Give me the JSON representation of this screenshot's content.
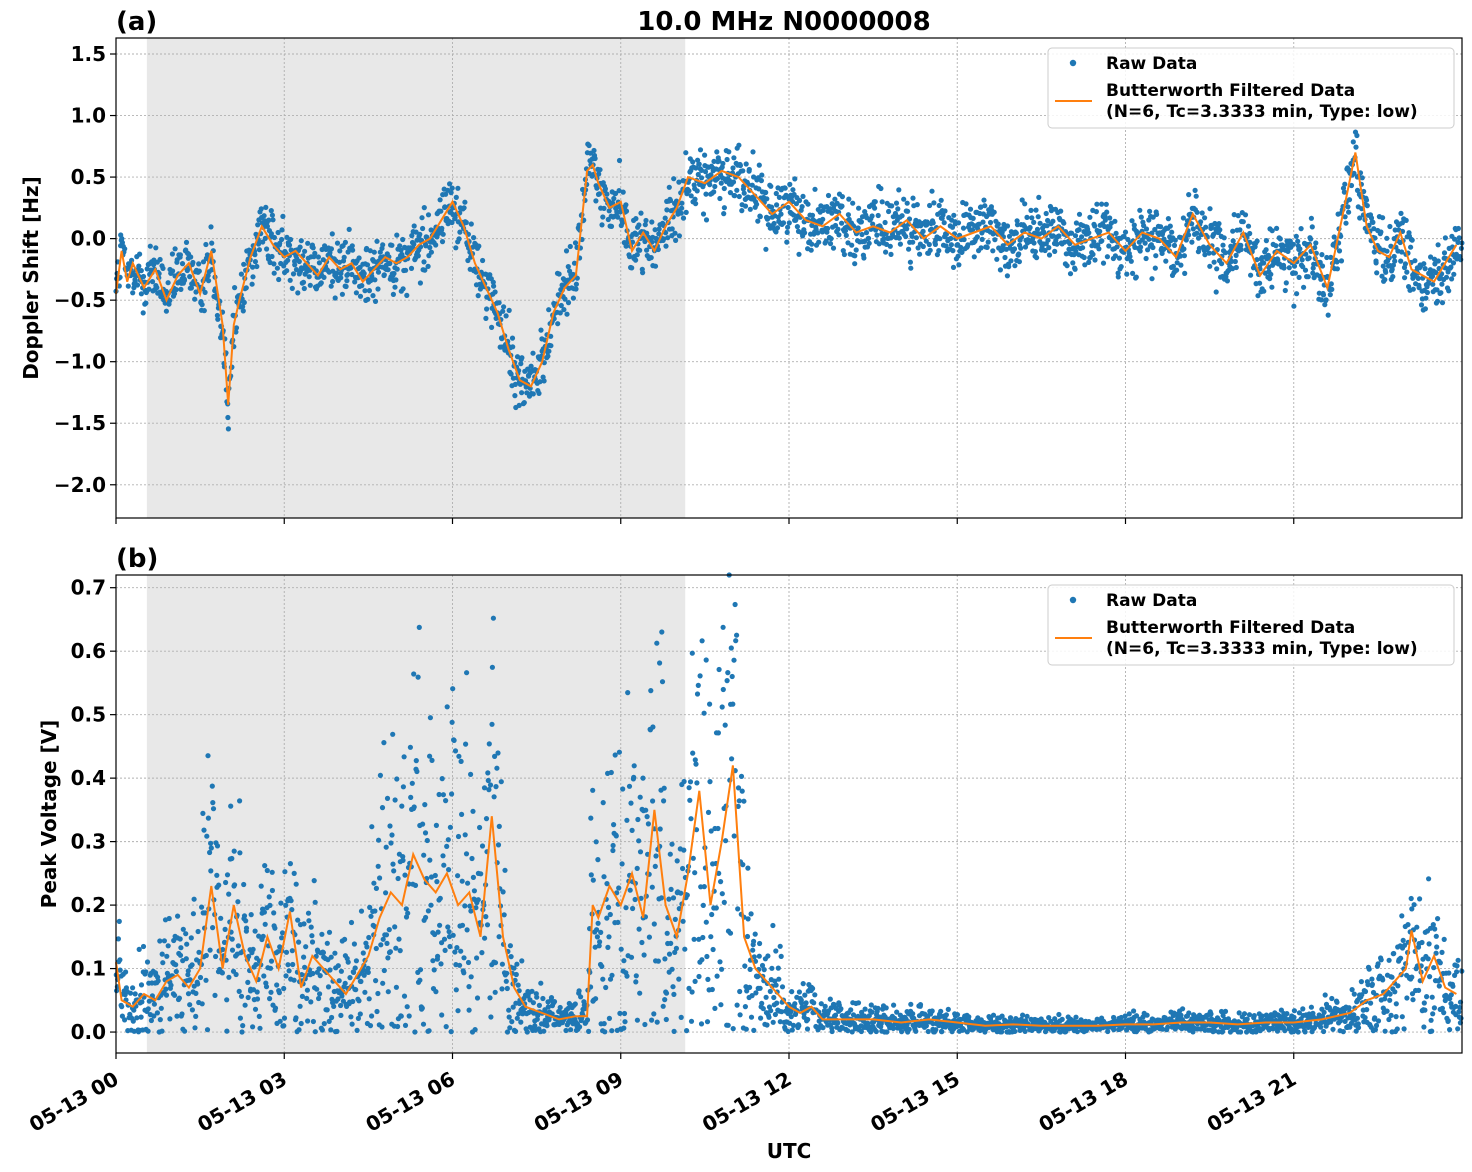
{
  "figure": {
    "title": "10.0 MHz N0000008",
    "xlabel": "UTC",
    "x_ticks": [
      "05-13 00",
      "05-13 03",
      "05-13 06",
      "05-13 09",
      "05-13 12",
      "05-13 15",
      "05-13 18",
      "05-13 21"
    ]
  },
  "colors": {
    "raw": "#1f77b4",
    "filtered": "#ff7f0e",
    "shade": "#e8e8e8",
    "grid": "#b0b0b0"
  },
  "chart_data": [
    {
      "type": "scatter",
      "panel_label": "(a)",
      "title": "10.0 MHz N0000008",
      "ylabel": "Doppler Shift [Hz]",
      "xlabel": "",
      "x_unit": "hours after 05-13 00 UTC",
      "xlim": [
        0,
        24
      ],
      "ylim": [
        -2.27,
        1.63
      ],
      "y_ticks": [
        1.5,
        1.0,
        0.5,
        0.0,
        -0.5,
        -1.0,
        -1.5,
        -2.0
      ],
      "y_tick_labels": [
        "1.5",
        "1.0",
        "0.5",
        "0.0",
        "−0.5",
        "−1.0",
        "−1.5",
        "−2.0"
      ],
      "shaded_interval": [
        0.55,
        10.15
      ],
      "grid": true,
      "legend_position": "top-right",
      "legend": [
        "Raw Data",
        "Butterworth Filtered Data",
        "(N=6, Tc=3.3333 min, Type: low)"
      ],
      "filtered": {
        "name": "Butterworth Filtered Data",
        "x": [
          0.0,
          0.1,
          0.2,
          0.3,
          0.5,
          0.7,
          0.9,
          1.1,
          1.3,
          1.5,
          1.7,
          1.9,
          2.0,
          2.1,
          2.2,
          2.4,
          2.6,
          2.8,
          3.0,
          3.2,
          3.4,
          3.6,
          3.8,
          4.0,
          4.2,
          4.4,
          4.6,
          4.8,
          5.0,
          5.2,
          5.4,
          5.6,
          5.8,
          6.0,
          6.2,
          6.4,
          6.6,
          6.8,
          7.0,
          7.2,
          7.4,
          7.6,
          7.8,
          8.0,
          8.2,
          8.4,
          8.5,
          8.6,
          8.8,
          9.0,
          9.2,
          9.4,
          9.6,
          9.8,
          10.0,
          10.2,
          10.5,
          10.8,
          11.1,
          11.4,
          11.7,
          12.0,
          12.3,
          12.6,
          12.9,
          13.2,
          13.5,
          13.8,
          14.1,
          14.4,
          14.7,
          15.0,
          15.3,
          15.6,
          15.9,
          16.2,
          16.5,
          16.8,
          17.1,
          17.4,
          17.7,
          18.0,
          18.3,
          18.6,
          18.9,
          19.2,
          19.5,
          19.8,
          20.1,
          20.4,
          20.7,
          21.0,
          21.3,
          21.6,
          21.9,
          22.1,
          22.2,
          22.3,
          22.5,
          22.7,
          22.9,
          23.1,
          23.3,
          23.5,
          23.7,
          23.9
        ],
        "y": [
          -0.45,
          -0.1,
          -0.35,
          -0.2,
          -0.4,
          -0.25,
          -0.5,
          -0.3,
          -0.2,
          -0.45,
          -0.1,
          -0.7,
          -1.35,
          -0.7,
          -0.5,
          -0.15,
          0.1,
          -0.05,
          -0.15,
          -0.1,
          -0.2,
          -0.3,
          -0.15,
          -0.25,
          -0.2,
          -0.35,
          -0.25,
          -0.15,
          -0.2,
          -0.15,
          -0.05,
          0.0,
          0.15,
          0.3,
          0.1,
          -0.2,
          -0.4,
          -0.6,
          -0.9,
          -1.15,
          -1.2,
          -1.0,
          -0.6,
          -0.4,
          -0.3,
          0.55,
          0.6,
          0.45,
          0.25,
          0.3,
          -0.1,
          0.05,
          -0.1,
          0.1,
          0.25,
          0.5,
          0.45,
          0.55,
          0.5,
          0.35,
          0.2,
          0.3,
          0.15,
          0.1,
          0.2,
          0.05,
          0.1,
          0.05,
          0.15,
          0.0,
          0.1,
          0.0,
          0.05,
          0.1,
          -0.05,
          0.05,
          0.0,
          0.1,
          -0.05,
          0.0,
          0.05,
          -0.1,
          0.05,
          0.0,
          -0.15,
          0.2,
          -0.05,
          -0.2,
          0.05,
          -0.3,
          -0.1,
          -0.2,
          -0.05,
          -0.4,
          0.25,
          0.7,
          0.4,
          0.1,
          -0.1,
          -0.15,
          0.05,
          -0.25,
          -0.3,
          -0.35,
          -0.2,
          -0.05
        ]
      },
      "raw": {
        "name": "Raw Data",
        "spread": 0.22
      }
    },
    {
      "type": "scatter",
      "panel_label": "(b)",
      "title": "",
      "ylabel": "Peak Voltage [V]",
      "xlabel": "UTC",
      "x_unit": "hours after 05-13 00 UTC",
      "xlim": [
        0,
        24
      ],
      "ylim": [
        -0.033,
        0.72
      ],
      "y_ticks": [
        0.0,
        0.1,
        0.2,
        0.3,
        0.4,
        0.5,
        0.6,
        0.7
      ],
      "y_tick_labels": [
        "0.0",
        "0.1",
        "0.2",
        "0.3",
        "0.4",
        "0.5",
        "0.6",
        "0.7"
      ],
      "shaded_interval": [
        0.55,
        10.15
      ],
      "grid": true,
      "legend_position": "top-right",
      "legend": [
        "Raw Data",
        "Butterworth Filtered Data",
        "(N=6, Tc=3.3333 min, Type: low)"
      ],
      "filtered": {
        "name": "Butterworth Filtered Data",
        "x": [
          0.0,
          0.1,
          0.3,
          0.5,
          0.7,
          0.9,
          1.1,
          1.3,
          1.5,
          1.7,
          1.9,
          2.1,
          2.3,
          2.5,
          2.7,
          2.9,
          3.1,
          3.3,
          3.5,
          3.7,
          3.9,
          4.1,
          4.3,
          4.5,
          4.7,
          4.9,
          5.1,
          5.3,
          5.5,
          5.7,
          5.9,
          6.1,
          6.3,
          6.5,
          6.7,
          6.9,
          7.1,
          7.3,
          7.6,
          7.9,
          8.2,
          8.4,
          8.5,
          8.6,
          8.8,
          9.0,
          9.2,
          9.4,
          9.6,
          9.8,
          10.0,
          10.2,
          10.4,
          10.6,
          10.8,
          11.0,
          11.2,
          11.4,
          11.6,
          11.8,
          12.0,
          12.2,
          12.4,
          12.6,
          13.0,
          13.5,
          14.0,
          14.5,
          15.0,
          15.5,
          16.0,
          16.5,
          17.0,
          17.5,
          18.0,
          18.5,
          19.0,
          19.5,
          20.0,
          20.5,
          21.0,
          21.5,
          22.0,
          22.3,
          22.6,
          22.8,
          23.0,
          23.1,
          23.3,
          23.5,
          23.7,
          23.9
        ],
        "y": [
          0.11,
          0.05,
          0.04,
          0.06,
          0.05,
          0.08,
          0.09,
          0.07,
          0.1,
          0.23,
          0.1,
          0.2,
          0.12,
          0.08,
          0.15,
          0.1,
          0.19,
          0.07,
          0.12,
          0.1,
          0.08,
          0.06,
          0.09,
          0.12,
          0.18,
          0.22,
          0.2,
          0.28,
          0.24,
          0.22,
          0.25,
          0.2,
          0.22,
          0.15,
          0.34,
          0.15,
          0.07,
          0.04,
          0.03,
          0.02,
          0.025,
          0.025,
          0.2,
          0.18,
          0.23,
          0.2,
          0.25,
          0.18,
          0.35,
          0.2,
          0.15,
          0.25,
          0.38,
          0.2,
          0.3,
          0.42,
          0.15,
          0.1,
          0.08,
          0.06,
          0.04,
          0.03,
          0.04,
          0.02,
          0.02,
          0.02,
          0.015,
          0.02,
          0.015,
          0.01,
          0.012,
          0.01,
          0.01,
          0.01,
          0.012,
          0.012,
          0.015,
          0.015,
          0.012,
          0.015,
          0.015,
          0.02,
          0.03,
          0.05,
          0.06,
          0.08,
          0.1,
          0.16,
          0.08,
          0.12,
          0.07,
          0.06
        ]
      },
      "raw": {
        "name": "Raw Data",
        "spread": 0.6
      }
    }
  ]
}
